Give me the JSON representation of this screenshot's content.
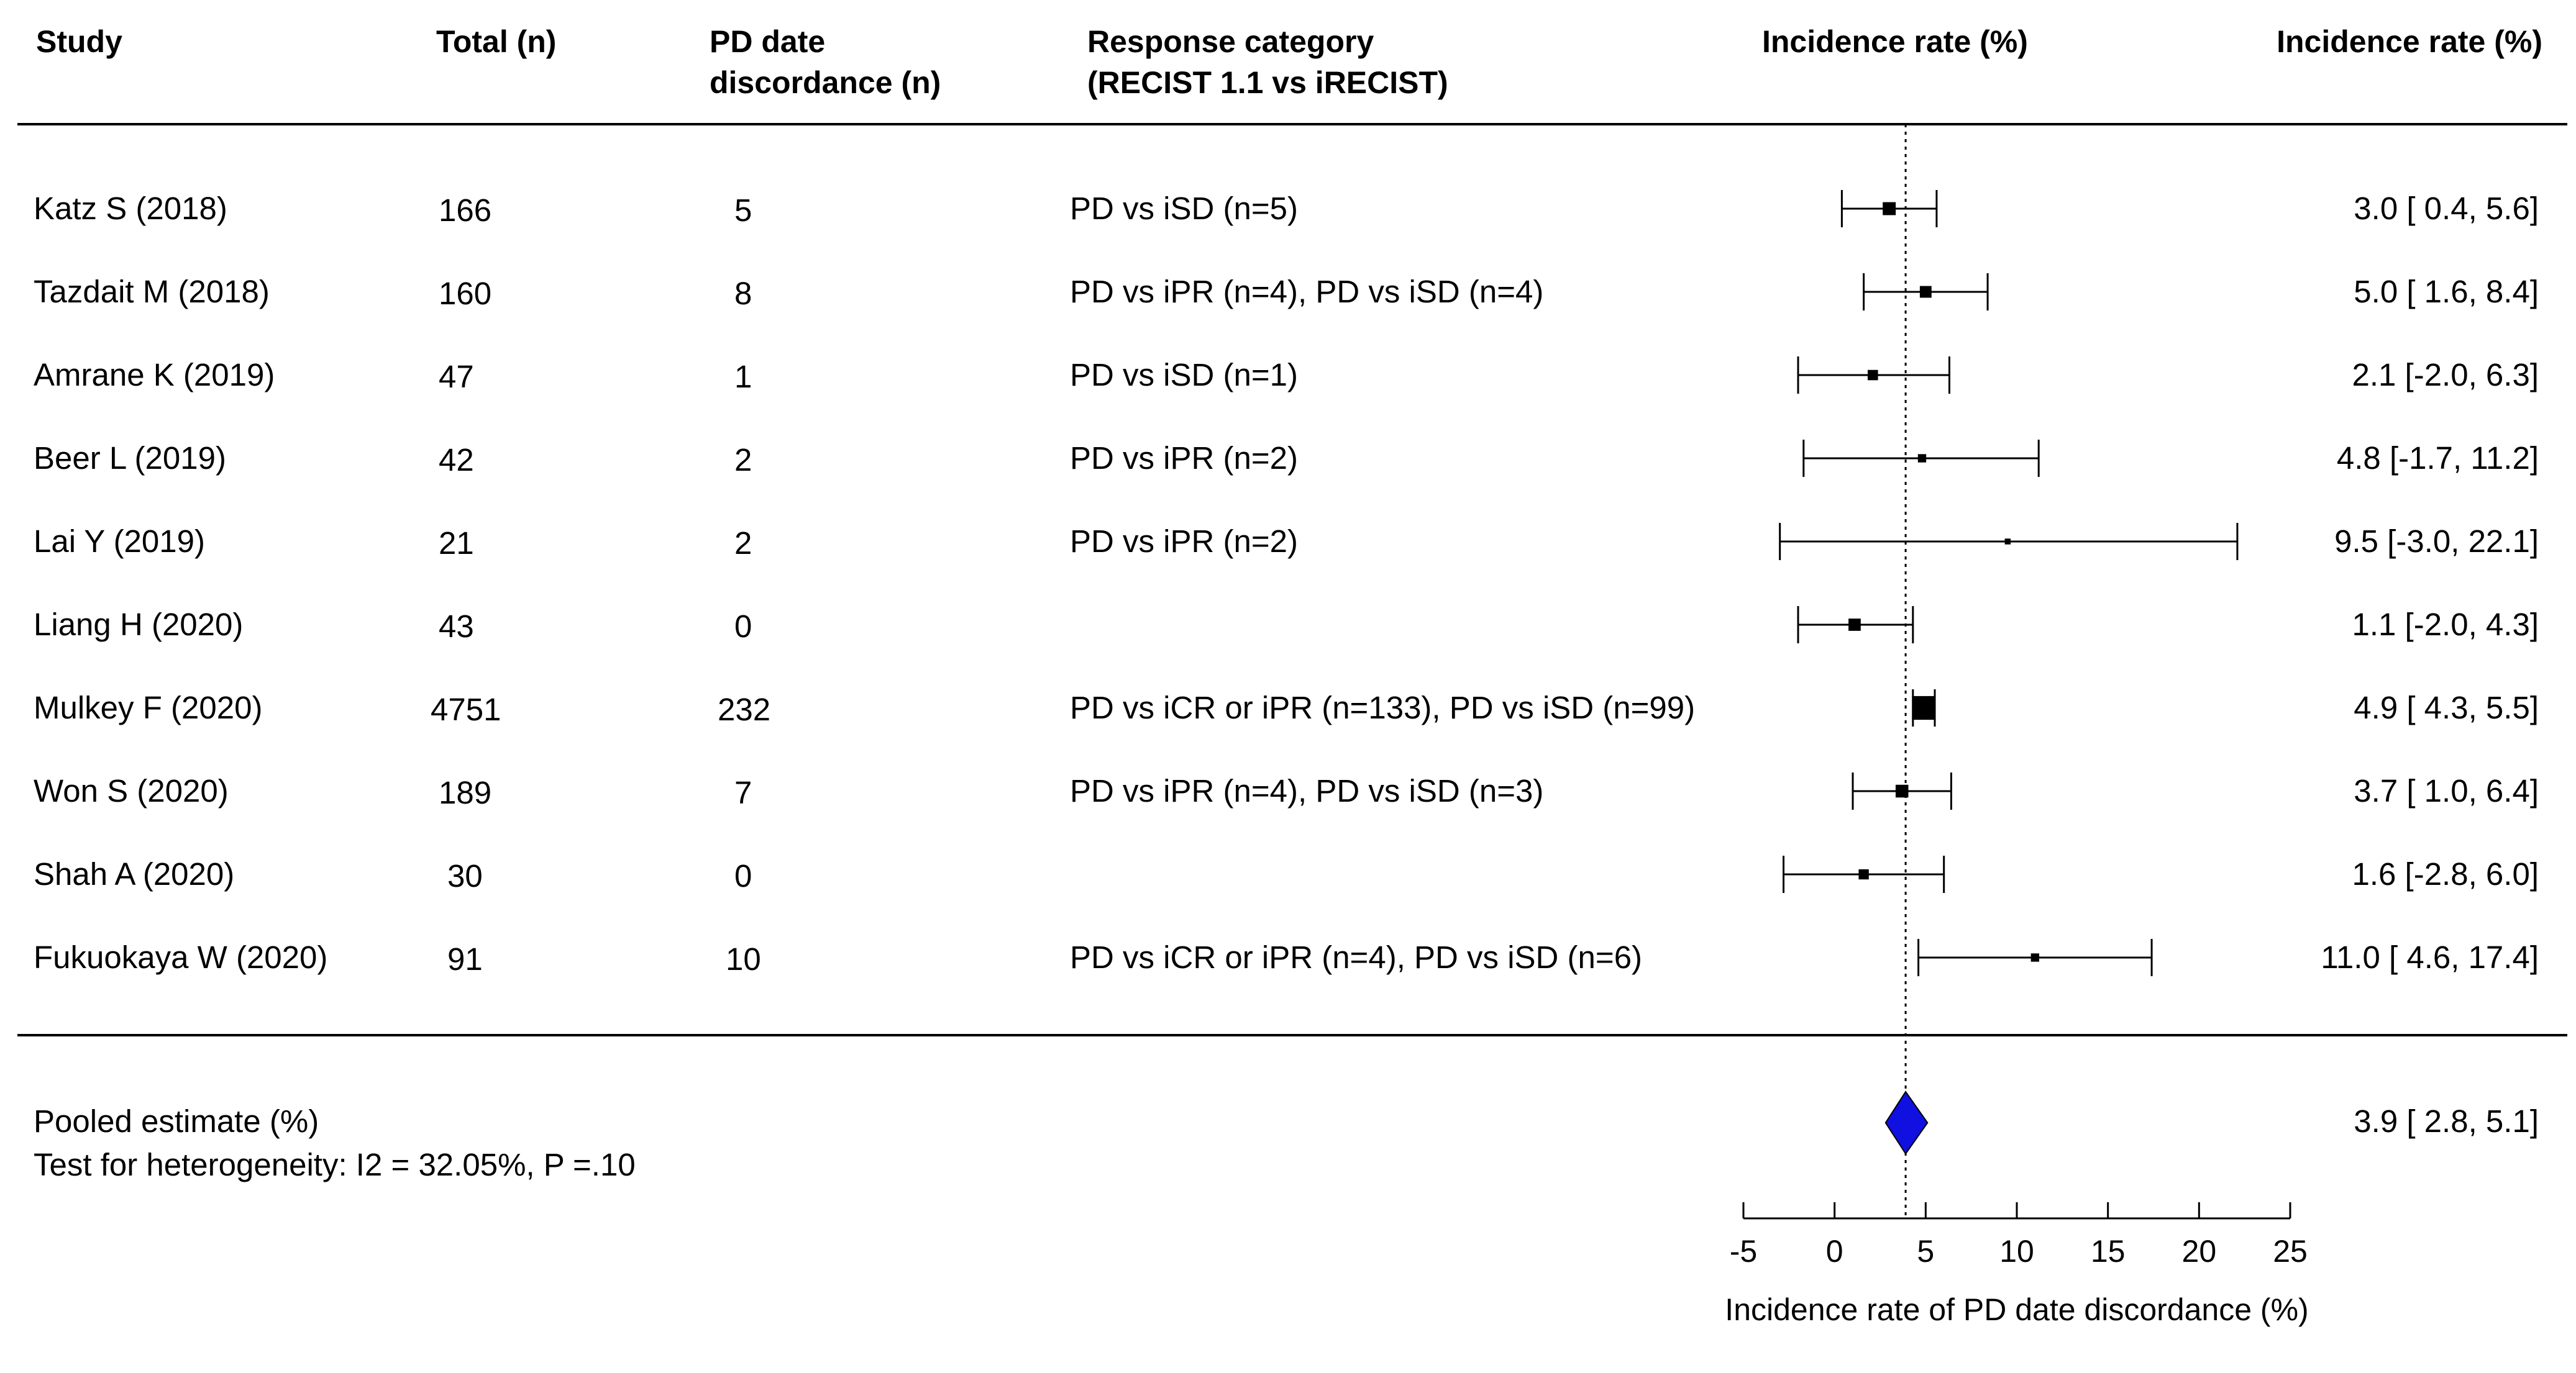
{
  "headers": {
    "study": "Study",
    "total": "Total (n)",
    "pd_line1": "PD date",
    "pd_line2": "discordance (n)",
    "resp_line1": "Response category",
    "resp_line2": "(RECIST 1.1 vs iRECIST)",
    "plot_header": "Incidence rate (%)",
    "value_header": "Incidence rate (%)"
  },
  "studies": [
    {
      "study": "Katz S (2018)",
      "total": "166",
      "pd": "5",
      "response": "PD vs iSD (n=5)",
      "est_text": "3.0 [ 0.4,  5.6]"
    },
    {
      "study": "Tazdait M (2018)",
      "total": "160",
      "pd": "8",
      "response": "PD vs iPR (n=4), PD vs iSD (n=4)",
      "est_text": "5.0 [ 1.6,  8.4]"
    },
    {
      "study": "Amrane K (2019)",
      "total": "47",
      "pd": "1",
      "response": "PD vs iSD (n=1)",
      "est_text": "2.1 [-2.0,  6.3]"
    },
    {
      "study": "Beer L (2019)",
      "total": "42",
      "pd": "2",
      "response": "PD vs iPR (n=2)",
      "est_text": "4.8 [-1.7, 11.2]"
    },
    {
      "study": "Lai Y (2019)",
      "total": "21",
      "pd": "2",
      "response": "PD vs iPR (n=2)",
      "est_text": "9.5 [-3.0, 22.1]"
    },
    {
      "study": "Liang H (2020)",
      "total": "43",
      "pd": "0",
      "response": "",
      "est_text": "1.1 [-2.0,  4.3]"
    },
    {
      "study": "Mulkey F (2020)",
      "total": "4751",
      "pd": "232",
      "response": "PD vs iCR or iPR (n=133), PD vs iSD (n=99)",
      "est_text": "4.9 [ 4.3,  5.5]"
    },
    {
      "study": "Won S (2020)",
      "total": "189",
      "pd": "7",
      "response": "PD vs iPR (n=4), PD vs iSD (n=3)",
      "est_text": "3.7 [ 1.0,  6.4]"
    },
    {
      "study": "Shah A (2020)",
      "total": "30",
      "pd": "0",
      "response": "",
      "est_text": "1.6 [-2.8,  6.0]"
    },
    {
      "study": "Fukuokaya W (2020)",
      "total": "91",
      "pd": "10",
      "response": "PD vs iCR or iPR (n=4), PD vs iSD (n=6)",
      "est_text": "11.0 [ 4.6, 17.4]"
    }
  ],
  "pooled": {
    "label": "Pooled estimate (%)",
    "heterogeneity": "Test for heterogeneity: I2 = 32.05%, P =.10",
    "est_text": "3.9 [ 2.8,  5.1]"
  },
  "colors": {
    "diamond": "#1010e0",
    "ink": "#000000"
  },
  "chart_data": {
    "type": "forest",
    "title": "",
    "xlabel": "Incidence rate of PD date discordance (%)",
    "xlim": [
      -5,
      25
    ],
    "xticks": [
      -5,
      0,
      5,
      10,
      15,
      20,
      25
    ],
    "reference_line": 3.9,
    "series": [
      {
        "name": "Katz S (2018)",
        "estimate": 3.0,
        "lower": 0.4,
        "upper": 5.6,
        "weight": 5.4
      },
      {
        "name": "Tazdait M (2018)",
        "estimate": 5.0,
        "lower": 1.6,
        "upper": 8.4,
        "weight": 4.4
      },
      {
        "name": "Amrane K (2019)",
        "estimate": 2.1,
        "lower": -2.0,
        "upper": 6.3,
        "weight": 3.4
      },
      {
        "name": "Beer L (2019)",
        "estimate": 4.8,
        "lower": -1.7,
        "upper": 11.2,
        "weight": 2.2
      },
      {
        "name": "Lai Y (2019)",
        "estimate": 9.5,
        "lower": -3.0,
        "upper": 22.1,
        "weight": 1.1
      },
      {
        "name": "Liang H (2020)",
        "estimate": 1.1,
        "lower": -2.0,
        "upper": 4.3,
        "weight": 4.8
      },
      {
        "name": "Mulkey F (2020)",
        "estimate": 4.9,
        "lower": 4.3,
        "upper": 5.5,
        "weight": 18
      },
      {
        "name": "Won S (2020)",
        "estimate": 3.7,
        "lower": 1.0,
        "upper": 6.4,
        "weight": 5.2
      },
      {
        "name": "Shah A (2020)",
        "estimate": 1.6,
        "lower": -2.8,
        "upper": 6.0,
        "weight": 3.3
      },
      {
        "name": "Fukuokaya W (2020)",
        "estimate": 11.0,
        "lower": 4.6,
        "upper": 17.4,
        "weight": 2.2
      }
    ],
    "pooled": {
      "estimate": 3.9,
      "lower": 2.8,
      "upper": 5.1
    }
  }
}
